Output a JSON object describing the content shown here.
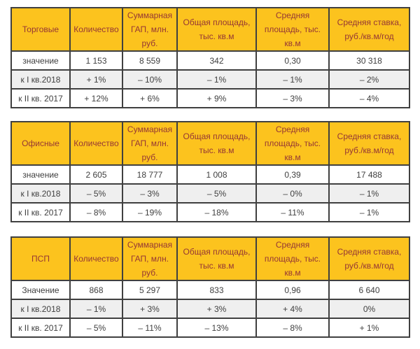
{
  "colors": {
    "page_bg": "#FFFFFF",
    "header_bg": "#FCC31E",
    "header_text": "#953735",
    "body_text": "#404040",
    "border": "#404040",
    "alt_row_bg": "#EFEFEF"
  },
  "column_headers": [
    "Количество",
    "Суммарная ГАП, млн. руб.",
    "Общая площадь, тыс. кв.м",
    "Средняя площадь, тыс. кв.м",
    "Средняя ставка, руб./кв.м/год"
  ],
  "tables": [
    {
      "title": "Торговые",
      "rows": [
        {
          "label": "значение",
          "values": [
            "1 153",
            "8 559",
            "342",
            "0,30",
            "30 318"
          ]
        },
        {
          "label": "к I кв.2018",
          "values": [
            "+ 1%",
            "– 10%",
            "– 1%",
            "– 1%",
            "– 2%"
          ]
        },
        {
          "label": "к II кв. 2017",
          "values": [
            "+ 12%",
            "+ 6%",
            "+ 9%",
            "– 3%",
            "– 4%"
          ]
        }
      ]
    },
    {
      "title": "Офисные",
      "rows": [
        {
          "label": "значение",
          "values": [
            "2 605",
            "18 777",
            "1 008",
            "0,39",
            "17 488"
          ]
        },
        {
          "label": "к I кв.2018",
          "values": [
            "– 5%",
            "– 3%",
            "– 5%",
            "– 0%",
            "– 1%"
          ]
        },
        {
          "label": "к II кв. 2017",
          "values": [
            "– 8%",
            "– 19%",
            "– 18%",
            "– 11%",
            "– 1%"
          ]
        }
      ]
    },
    {
      "title": "ПСП",
      "rows": [
        {
          "label": "Значение",
          "values": [
            "868",
            "5 297",
            "833",
            "0,96",
            "6 640"
          ]
        },
        {
          "label": "к I кв.2018",
          "values": [
            "– 1%",
            "+ 3%",
            "+ 3%",
            "+ 4%",
            "0%"
          ]
        },
        {
          "label": "к II кв. 2017",
          "values": [
            "– 5%",
            "– 11%",
            "– 13%",
            "– 8%",
            "+ 1%"
          ]
        }
      ]
    }
  ]
}
